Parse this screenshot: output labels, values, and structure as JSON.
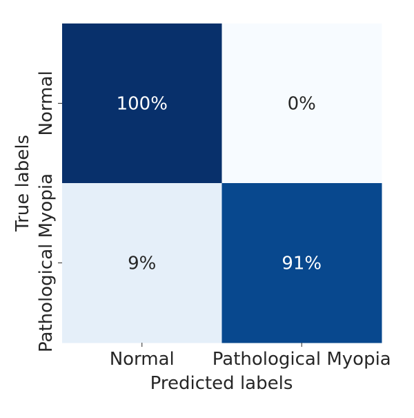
{
  "chart_data": {
    "type": "heatmap",
    "title": "",
    "xlabel": "Predicted labels",
    "ylabel": "True labels",
    "x_categories": [
      "Normal",
      "Pathological Myopia"
    ],
    "y_categories": [
      "Normal",
      "Pathological Myopia"
    ],
    "values": [
      [
        100,
        0
      ],
      [
        9,
        91
      ]
    ],
    "cell_labels": [
      [
        "100%",
        "0%"
      ],
      [
        "9%",
        "91%"
      ]
    ],
    "units": "%",
    "colormap": "Blues",
    "colorbar": false,
    "value_range": [
      0,
      100
    ]
  }
}
